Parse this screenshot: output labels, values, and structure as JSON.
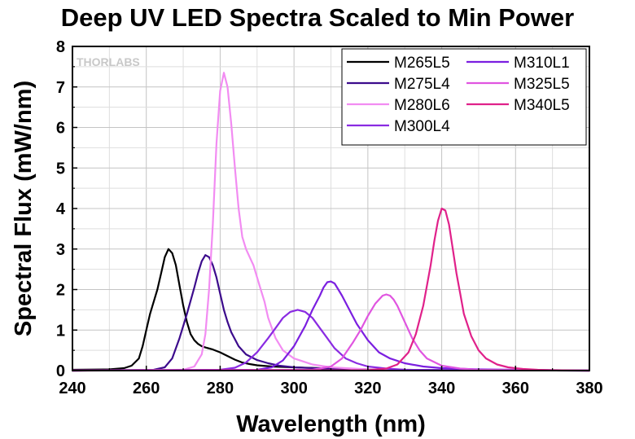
{
  "chart_data": {
    "type": "line",
    "title": "Deep UV LED Spectra Scaled to Min Power",
    "xlabel": "Wavelength (nm)",
    "ylabel": "Spectral Flux (mW/nm)",
    "xlim": [
      240,
      380
    ],
    "ylim": [
      0,
      8
    ],
    "xticks": [
      240,
      260,
      280,
      300,
      320,
      340,
      360,
      380
    ],
    "yticks": [
      0,
      1,
      2,
      3,
      4,
      5,
      6,
      7,
      8
    ],
    "grid": true,
    "legend_position": "top-right",
    "watermark": "THORLABS",
    "series": [
      {
        "name": "M265L5",
        "color": "#000000",
        "x": [
          240,
          250,
          254,
          256,
          258,
          259,
          260,
          261,
          262,
          263,
          264,
          265,
          266,
          267,
          268,
          269,
          270,
          271,
          272,
          273,
          274,
          275,
          276,
          278,
          280,
          282,
          284,
          286,
          288,
          290,
          294,
          300,
          310,
          320,
          330,
          340,
          380
        ],
        "y": [
          0.02,
          0.03,
          0.06,
          0.12,
          0.3,
          0.6,
          1.0,
          1.4,
          1.7,
          2.0,
          2.4,
          2.8,
          3.0,
          2.9,
          2.6,
          2.1,
          1.6,
          1.2,
          0.9,
          0.75,
          0.66,
          0.6,
          0.57,
          0.52,
          0.45,
          0.36,
          0.27,
          0.2,
          0.16,
          0.13,
          0.1,
          0.08,
          0.05,
          0.03,
          0.02,
          0.01,
          0.0
        ]
      },
      {
        "name": "M275L4",
        "color": "#3c0b8c",
        "x": [
          240,
          262,
          265,
          267,
          269,
          271,
          273,
          274,
          275,
          276,
          277,
          278,
          279,
          280,
          281,
          282,
          283,
          285,
          287,
          290,
          293,
          296,
          300,
          305,
          310,
          320,
          380
        ],
        "y": [
          0.0,
          0.02,
          0.08,
          0.3,
          0.8,
          1.4,
          2.05,
          2.4,
          2.7,
          2.85,
          2.8,
          2.6,
          2.3,
          1.9,
          1.5,
          1.2,
          0.95,
          0.6,
          0.4,
          0.26,
          0.18,
          0.12,
          0.08,
          0.06,
          0.04,
          0.02,
          0.0
        ]
      },
      {
        "name": "M280L6",
        "color": "#f28cf2",
        "x": [
          240,
          270,
          273,
          275,
          276,
          277,
          278,
          279,
          280,
          281,
          282,
          283,
          284,
          285,
          286,
          287,
          288,
          289,
          290,
          291,
          292,
          293,
          295,
          297,
          300,
          305,
          310,
          320,
          330,
          380
        ],
        "y": [
          0.0,
          0.02,
          0.1,
          0.4,
          0.9,
          2.0,
          3.6,
          5.6,
          6.9,
          7.35,
          7.0,
          6.1,
          5.0,
          4.0,
          3.3,
          3.0,
          2.8,
          2.6,
          2.3,
          2.0,
          1.7,
          1.3,
          0.8,
          0.5,
          0.3,
          0.15,
          0.08,
          0.03,
          0.01,
          0.0
        ]
      },
      {
        "name": "M300L4",
        "color": "#8a2be2",
        "x": [
          240,
          280,
          284,
          287,
          290,
          293,
          295,
          297,
          299,
          301,
          303,
          305,
          307,
          309,
          311,
          314,
          317,
          320,
          325,
          330,
          340,
          380
        ],
        "y": [
          0.0,
          0.02,
          0.07,
          0.2,
          0.45,
          0.8,
          1.05,
          1.3,
          1.45,
          1.5,
          1.45,
          1.3,
          1.05,
          0.8,
          0.55,
          0.3,
          0.18,
          0.1,
          0.05,
          0.02,
          0.01,
          0.0
        ]
      },
      {
        "name": "M310L1",
        "color": "#7b1fe0",
        "x": [
          240,
          290,
          294,
          297,
          300,
          303,
          305,
          307,
          308,
          309,
          310,
          311,
          312,
          313,
          315,
          317,
          320,
          323,
          326,
          330,
          335,
          340,
          350,
          380
        ],
        "y": [
          0.0,
          0.02,
          0.08,
          0.25,
          0.6,
          1.1,
          1.5,
          1.85,
          2.05,
          2.18,
          2.2,
          2.15,
          2.0,
          1.85,
          1.5,
          1.15,
          0.75,
          0.45,
          0.3,
          0.18,
          0.1,
          0.06,
          0.03,
          0.0
        ]
      },
      {
        "name": "M325L5",
        "color": "#e055e0",
        "x": [
          240,
          305,
          310,
          313,
          316,
          318,
          320,
          322,
          324,
          325,
          326,
          327,
          328,
          330,
          332,
          334,
          336,
          340,
          345,
          350,
          380
        ],
        "y": [
          0.0,
          0.02,
          0.1,
          0.3,
          0.7,
          1.0,
          1.35,
          1.65,
          1.85,
          1.88,
          1.85,
          1.75,
          1.6,
          1.2,
          0.8,
          0.5,
          0.3,
          0.12,
          0.05,
          0.02,
          0.0
        ]
      },
      {
        "name": "M340L5",
        "color": "#e0218a",
        "x": [
          240,
          320,
          325,
          328,
          331,
          333,
          335,
          337,
          338,
          339,
          340,
          341,
          342,
          343,
          344,
          345,
          346,
          348,
          350,
          352,
          355,
          358,
          362,
          366,
          370,
          380
        ],
        "y": [
          0.0,
          0.01,
          0.05,
          0.15,
          0.45,
          0.9,
          1.6,
          2.6,
          3.2,
          3.7,
          4.0,
          3.95,
          3.6,
          3.0,
          2.4,
          1.9,
          1.4,
          0.85,
          0.5,
          0.3,
          0.15,
          0.08,
          0.04,
          0.02,
          0.01,
          0.0
        ]
      }
    ]
  }
}
